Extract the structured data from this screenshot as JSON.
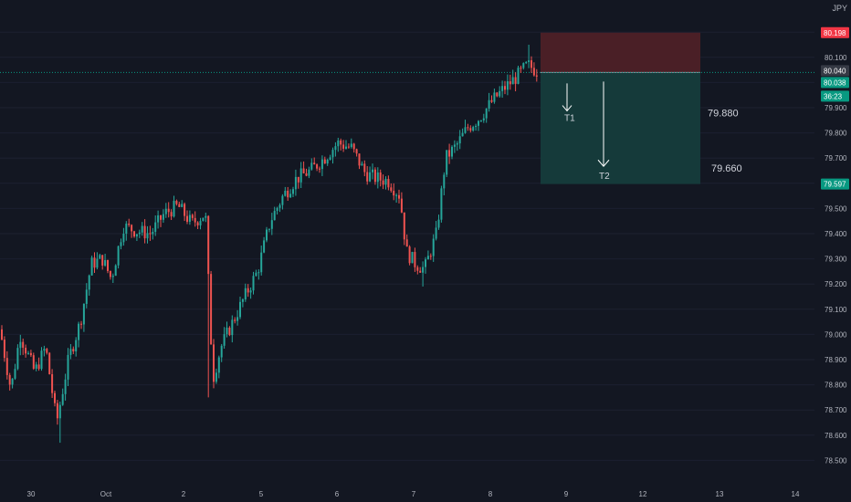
{
  "symbol": {
    "currency": "JPY"
  },
  "price_axis": {
    "ticks": [
      "80.100",
      "79.900",
      "79.800",
      "79.700",
      "79.500",
      "79.400",
      "79.300",
      "79.200",
      "79.100",
      "79.000",
      "78.900",
      "78.800",
      "78.700",
      "78.600",
      "78.500"
    ]
  },
  "tags": {
    "stop": {
      "value": "80.198",
      "color": "#f23645"
    },
    "last": {
      "value": "80.040",
      "color": "#363a45"
    },
    "current": {
      "value": "80.038",
      "color": "#089981"
    },
    "countdown": {
      "value": "36:23",
      "color": "#089981"
    },
    "target": {
      "value": "79.597",
      "color": "#089981"
    }
  },
  "annotations": {
    "t1_label": "T1",
    "t2_label": "T2",
    "t1_price": "79.880",
    "t2_price": "79.660"
  },
  "x_axis": {
    "ticks": [
      "30",
      "Oct",
      "2",
      "5",
      "6",
      "7",
      "8",
      "9",
      "12",
      "13",
      "14"
    ]
  },
  "colors": {
    "background": "#131722",
    "up": "#26a69a",
    "down": "#ef5350",
    "risk_zone": "#4a1f26",
    "reward_zone": "#153a3a"
  },
  "chart_data": {
    "type": "candlestick",
    "ylim": [
      78.46,
      80.28
    ],
    "position": {
      "entry": 80.04,
      "stop": 80.198,
      "target": 79.597,
      "t1": 79.88,
      "t2": 79.66
    },
    "anchors": [
      [
        0,
        79.02
      ],
      [
        12,
        78.78
      ],
      [
        22,
        79.0
      ],
      [
        38,
        78.85
      ],
      [
        50,
        78.95
      ],
      [
        62,
        78.65
      ],
      [
        75,
        78.9
      ],
      [
        88,
        79.05
      ],
      [
        100,
        79.28
      ],
      [
        112,
        79.3
      ],
      [
        122,
        79.22
      ],
      [
        135,
        79.43
      ],
      [
        150,
        79.41
      ],
      [
        165,
        79.4
      ],
      [
        180,
        79.48
      ],
      [
        195,
        79.51
      ],
      [
        210,
        79.44
      ],
      [
        225,
        79.48
      ],
      [
        233,
        78.82
      ],
      [
        242,
        78.95
      ],
      [
        255,
        79.05
      ],
      [
        268,
        79.15
      ],
      [
        282,
        79.25
      ],
      [
        296,
        79.45
      ],
      [
        310,
        79.55
      ],
      [
        325,
        79.62
      ],
      [
        340,
        79.65
      ],
      [
        355,
        79.7
      ],
      [
        370,
        79.76
      ],
      [
        385,
        79.74
      ],
      [
        400,
        79.64
      ],
      [
        412,
        79.62
      ],
      [
        425,
        79.61
      ],
      [
        438,
        79.55
      ],
      [
        445,
        79.33
      ],
      [
        455,
        79.28
      ],
      [
        465,
        79.26
      ],
      [
        478,
        79.4
      ],
      [
        488,
        79.7
      ],
      [
        500,
        79.75
      ],
      [
        512,
        79.82
      ],
      [
        525,
        79.86
      ],
      [
        540,
        79.93
      ],
      [
        553,
        79.98
      ],
      [
        565,
        80.02
      ],
      [
        578,
        80.07
      ],
      [
        590,
        80.04
      ]
    ],
    "events": [
      [
        229,
        79.46,
        78.75,
        "spike_down"
      ],
      [
        463,
        79.29,
        79.19,
        "spike_down"
      ],
      [
        580,
        80.05,
        80.15,
        "spike_up"
      ],
      [
        66,
        78.72,
        78.57,
        "spike_down"
      ]
    ]
  }
}
